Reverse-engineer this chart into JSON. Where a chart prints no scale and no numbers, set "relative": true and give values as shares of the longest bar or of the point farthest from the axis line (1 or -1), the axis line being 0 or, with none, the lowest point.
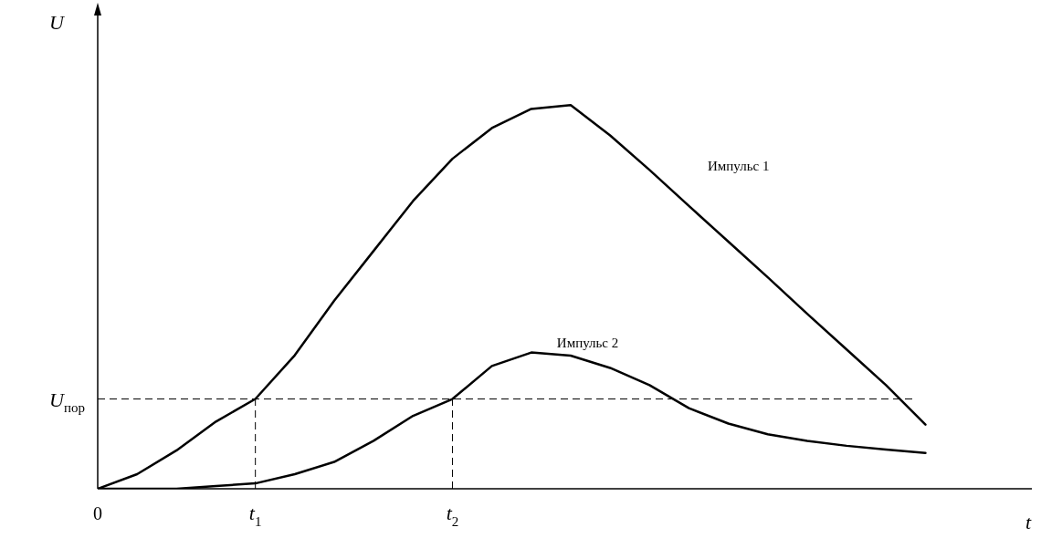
{
  "chart_data": {
    "type": "line",
    "relative": true,
    "ylabel": "U",
    "annotations": [
      "t"
    ],
    "categories": [
      "0",
      null,
      null,
      null,
      "t$_{1}$",
      null,
      null,
      null,
      null,
      "t$_{2}$",
      null,
      null,
      null,
      null,
      null,
      null,
      null,
      null,
      null,
      null,
      null,
      null
    ],
    "marker": "none",
    "line_style": "solid",
    "legend": false,
    "grid": false,
    "ref_lines": [
      {
        "axis": "y",
        "value": 0.234,
        "label": "U$_{пор}$",
        "line_style": "dashed",
        "color": "#000000"
      },
      {
        "axis": "x",
        "value": "t$_{1}$",
        "label": null,
        "line_style": "dashed",
        "color": "#000000"
      },
      {
        "axis": "x",
        "value": "t$_{2}$",
        "label": null,
        "line_style": "dashed",
        "color": "#000000"
      }
    ],
    "series": [
      {
        "name": "Импульс 1",
        "color": "#000000",
        "values": [
          0,
          0.038,
          0.1,
          0.175,
          0.234,
          0.348,
          0.49,
          0.62,
          0.75,
          0.86,
          0.94,
          0.99,
          1,
          0.921,
          0.831,
          0.737,
          0.644,
          0.551,
          0.456,
          0.363,
          0.27,
          0.167
        ]
      },
      {
        "name": "Импульс 2",
        "color": "#000000",
        "values": [
          0,
          0,
          0,
          0.007,
          0.014,
          0.038,
          0.07,
          0.125,
          0.19,
          0.234,
          0.32,
          0.355,
          0.347,
          0.315,
          0.27,
          0.21,
          0.17,
          0.142,
          0.125,
          0.112,
          0.102,
          0.093
        ]
      }
    ]
  }
}
